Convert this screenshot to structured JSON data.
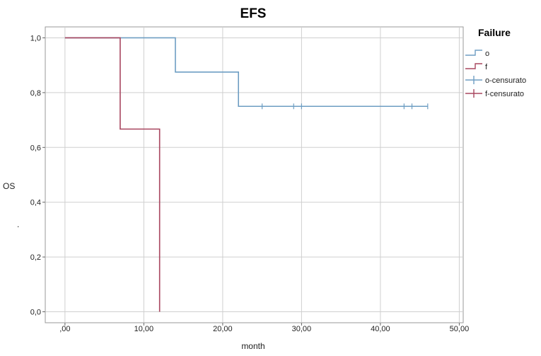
{
  "chart_data": {
    "type": "line",
    "subtype": "kaplan-meier-step",
    "title": "EFS",
    "xlabel": "month",
    "ylabel": "OS",
    "ylabel_extra": ".",
    "xlim": [
      -2.5,
      50.5
    ],
    "ylim": [
      -0.04,
      1.04
    ],
    "x_ticks": [
      0,
      10,
      20,
      30,
      40,
      50
    ],
    "x_tick_labels": [
      ",00",
      "10,00",
      "20,00",
      "30,00",
      "40,00",
      "50,00"
    ],
    "y_ticks": [
      0,
      0.2,
      0.4,
      0.6,
      0.8,
      1.0
    ],
    "y_tick_labels": [
      "0,0",
      "0,2",
      "0,4",
      "0,6",
      "0,8",
      "1,0"
    ],
    "grid": true,
    "legend": {
      "title": "Failure",
      "placement": "right",
      "entries": [
        {
          "label": "o",
          "kind": "step",
          "color": "#6e9ec3"
        },
        {
          "label": "f",
          "kind": "step",
          "color": "#a8465f"
        },
        {
          "label": "o-censurato",
          "kind": "censor",
          "color": "#6e9ec3"
        },
        {
          "label": "f-censurato",
          "kind": "censor",
          "color": "#a8465f"
        }
      ]
    },
    "series": [
      {
        "name": "o",
        "color": "#6e9ec3",
        "steps": [
          [
            0,
            1.0
          ],
          [
            14,
            0.875
          ],
          [
            22,
            0.75
          ]
        ],
        "end_x": 46,
        "censored": [
          [
            25,
            0.75
          ],
          [
            29,
            0.75
          ],
          [
            30,
            0.75
          ],
          [
            43,
            0.75
          ],
          [
            44,
            0.75
          ],
          [
            46,
            0.75
          ]
        ]
      },
      {
        "name": "f",
        "color": "#a8465f",
        "steps": [
          [
            0,
            1.0
          ],
          [
            7,
            0.667
          ],
          [
            12,
            0.0
          ]
        ],
        "end_x": 12,
        "censored": []
      }
    ]
  }
}
